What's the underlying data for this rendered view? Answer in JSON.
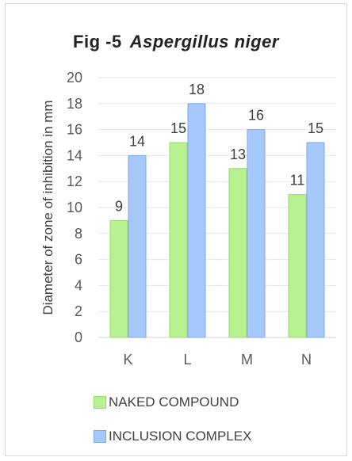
{
  "chart_data": {
    "type": "bar",
    "title_prefix": "Fig -5",
    "title_species": "Aspergillus niger",
    "xlabel": "",
    "ylabel": "Diameter of zone of inhibition in mm",
    "categories": [
      "K",
      "L",
      "M",
      "N"
    ],
    "series": [
      {
        "name": "NAKED COMPOUND",
        "values": [
          9,
          15,
          13,
          11
        ],
        "color": "#b8f18f",
        "border": "#9bd86e"
      },
      {
        "name": "INCLUSION COMPLEX",
        "values": [
          14,
          18,
          16,
          15
        ],
        "color": "#a6c8fb",
        "border": "#7da9ee"
      }
    ],
    "ylim": [
      0,
      20
    ],
    "yticks": [
      "0",
      "2",
      "4",
      "6",
      "8",
      "10",
      "12",
      "14",
      "16",
      "18",
      "20"
    ],
    "grid": true,
    "legend_position": "bottom"
  }
}
